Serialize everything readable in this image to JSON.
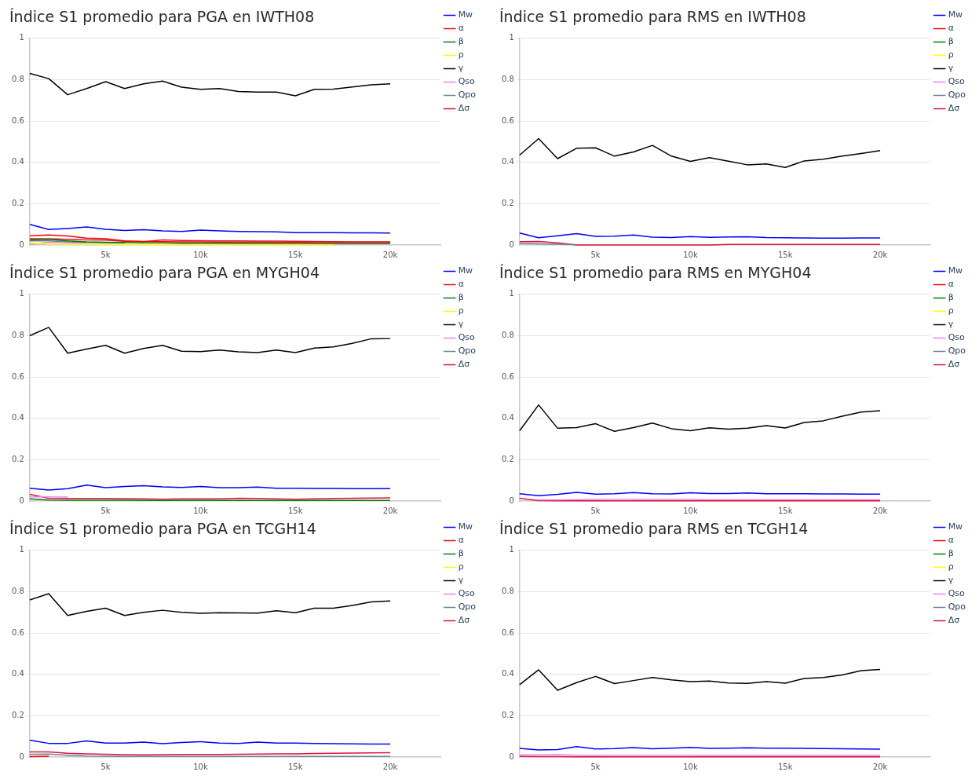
{
  "chart_data": [
    {
      "type": "line",
      "title": "Índice S1 promedio para PGA en IWTH08",
      "x": [
        1000,
        2000,
        3000,
        4000,
        5000,
        6000,
        7000,
        8000,
        9000,
        10000,
        11000,
        12000,
        13000,
        14000,
        15000,
        16000,
        17000,
        18000,
        19000,
        20000
      ],
      "xlim": [
        1000,
        22650
      ],
      "xticks": [
        {
          "value": 5000,
          "label": "5k"
        },
        {
          "value": 10000,
          "label": "10k"
        },
        {
          "value": 15000,
          "label": "15k"
        },
        {
          "value": 20000,
          "label": "20k"
        }
      ],
      "ylim": [
        0,
        1
      ],
      "yticks": [
        0,
        0.2,
        0.4,
        0.6,
        0.8,
        1
      ],
      "grid": "y",
      "legend": "top right",
      "series": [
        {
          "name": "Mw",
          "color": "#0000ff",
          "values": [
            0.1,
            0.075,
            0.08,
            0.087,
            0.076,
            0.07,
            0.074,
            0.068,
            0.066,
            0.072,
            0.068,
            0.066,
            0.065,
            0.064,
            0.06,
            0.06,
            0.06,
            0.059,
            0.059,
            0.058
          ]
        },
        {
          "name": "α",
          "color": "#ff0000",
          "values": [
            0.045,
            0.048,
            0.044,
            0.033,
            0.03,
            0.02,
            0.017,
            0.016,
            0.015,
            0.015,
            0.014,
            0.014,
            0.014,
            0.013,
            0.013,
            0.013,
            0.013,
            0.013,
            0.013,
            0.013
          ]
        },
        {
          "name": "β",
          "color": "#008000",
          "values": [
            0.025,
            0.028,
            0.02,
            0.015,
            0.013,
            0.012,
            0.01,
            0.01,
            0.009,
            0.009,
            0.009,
            0.008,
            0.008,
            0.008,
            0.008,
            0.007,
            0.007,
            0.007,
            0.007,
            0.007
          ]
        },
        {
          "name": "ρ",
          "color": "#ffff00",
          "values": [
            0.01,
            0.005,
            0.004,
            0.004,
            0.003,
            0.003,
            0.003,
            0.003,
            0.003,
            0.003,
            0.003,
            0.003,
            0.003,
            0.003,
            0.003,
            0.003,
            0.003,
            null,
            null,
            null
          ]
        },
        {
          "name": "γ",
          "color": "#000000",
          "values": [
            0.83,
            0.805,
            0.727,
            0.757,
            0.79,
            0.757,
            0.78,
            0.793,
            0.764,
            0.753,
            0.757,
            0.743,
            0.74,
            0.74,
            0.722,
            0.753,
            0.754,
            0.765,
            0.775,
            0.78
          ]
        },
        {
          "name": "Qso",
          "color": "#ee82ee",
          "values": [
            0.003,
            0.013,
            0.01,
            0.008,
            null,
            null,
            null,
            null,
            null,
            null,
            null,
            null,
            null,
            null,
            null,
            null,
            null,
            null,
            null,
            null
          ]
        },
        {
          "name": "Qpo",
          "color": "#708090",
          "values": [
            0.02,
            0.02,
            0.015,
            0.012,
            0.01,
            0.009,
            null,
            null,
            null,
            null,
            null,
            null,
            null,
            null,
            null,
            null,
            null,
            null,
            null,
            null
          ]
        },
        {
          "name": "Δσ",
          "color": "#dc143c",
          "values": [
            0.03,
            0.03,
            0.028,
            0.025,
            0.024,
            0.018,
            0.016,
            0.025,
            0.022,
            0.021,
            0.02,
            0.02,
            0.019,
            0.019,
            0.018,
            0.017,
            0.016,
            0.015,
            0.015,
            0.015
          ]
        }
      ]
    },
    {
      "type": "line",
      "title": "Índice S1 promedio para RMS en IWTH08",
      "x": [
        1000,
        2000,
        3000,
        4000,
        5000,
        6000,
        7000,
        8000,
        9000,
        10000,
        11000,
        12000,
        13000,
        14000,
        15000,
        16000,
        17000,
        18000,
        19000,
        20000
      ],
      "xlim": [
        1000,
        22650
      ],
      "xticks": [
        {
          "value": 5000,
          "label": "5k"
        },
        {
          "value": 10000,
          "label": "10k"
        },
        {
          "value": 15000,
          "label": "15k"
        },
        {
          "value": 20000,
          "label": "20k"
        }
      ],
      "ylim": [
        0,
        1
      ],
      "yticks": [
        0,
        0.2,
        0.4,
        0.6,
        0.8,
        1
      ],
      "grid": "y",
      "legend": "top right",
      "series": [
        {
          "name": "Mw",
          "color": "#0000ff",
          "values": [
            0.058,
            0.035,
            0.045,
            0.055,
            0.042,
            0.043,
            0.048,
            0.038,
            0.036,
            0.041,
            0.037,
            0.039,
            0.04,
            0.036,
            0.035,
            0.034,
            0.033,
            0.033,
            0.034,
            0.034
          ]
        },
        {
          "name": "α",
          "color": "#ff0000",
          "values": [
            null,
            null,
            null,
            null,
            null,
            null,
            null,
            null,
            null,
            null,
            null,
            null,
            null,
            null,
            null,
            null,
            null,
            null,
            null,
            null
          ]
        },
        {
          "name": "β",
          "color": "#008000",
          "values": [
            null,
            null,
            null,
            null,
            null,
            null,
            null,
            null,
            null,
            null,
            null,
            null,
            null,
            null,
            null,
            null,
            null,
            null,
            null,
            null
          ]
        },
        {
          "name": "ρ",
          "color": "#ffff00",
          "values": [
            null,
            null,
            null,
            null,
            null,
            null,
            null,
            null,
            null,
            null,
            null,
            null,
            null,
            null,
            null,
            null,
            null,
            null,
            null,
            null
          ]
        },
        {
          "name": "γ",
          "color": "#000000",
          "values": [
            0.435,
            0.515,
            0.418,
            0.468,
            0.47,
            0.43,
            0.45,
            0.482,
            0.43,
            0.405,
            0.423,
            0.406,
            0.388,
            0.392,
            0.375,
            0.407,
            0.415,
            0.43,
            0.443,
            0.457
          ]
        },
        {
          "name": "Qso",
          "color": "#ee82ee",
          "values": [
            null,
            null,
            null,
            null,
            null,
            null,
            null,
            null,
            null,
            null,
            null,
            null,
            null,
            null,
            null,
            null,
            null,
            null,
            null,
            null
          ]
        },
        {
          "name": "Qpo",
          "color": "#708090",
          "values": [
            0.008,
            0.006,
            0.004,
            0.002,
            null,
            null,
            null,
            null,
            null,
            null,
            null,
            null,
            null,
            null,
            null,
            null,
            null,
            null,
            null,
            null
          ]
        },
        {
          "name": "Δσ",
          "color": "#dc143c",
          "values": [
            0.016,
            0.017,
            0.01,
            0,
            0,
            0,
            0,
            0,
            0,
            0,
            0,
            0.003,
            0.003,
            0.003,
            0.003,
            0.003,
            0.003,
            0.003,
            0.003,
            0.003
          ]
        }
      ]
    },
    {
      "type": "line",
      "title": "Índice S1 promedio para PGA en MYGH04",
      "x": [
        1000,
        2000,
        3000,
        4000,
        5000,
        6000,
        7000,
        8000,
        9000,
        10000,
        11000,
        12000,
        13000,
        14000,
        15000,
        16000,
        17000,
        18000,
        19000,
        20000
      ],
      "xlim": [
        1000,
        22650
      ],
      "xticks": [
        {
          "value": 5000,
          "label": "5k"
        },
        {
          "value": 10000,
          "label": "10k"
        },
        {
          "value": 15000,
          "label": "15k"
        },
        {
          "value": 20000,
          "label": "20k"
        }
      ],
      "ylim": [
        0,
        1
      ],
      "yticks": [
        0,
        0.2,
        0.4,
        0.6,
        0.8,
        1
      ],
      "grid": "y",
      "legend": "top right",
      "series": [
        {
          "name": "Mw",
          "color": "#0000ff",
          "values": [
            0.062,
            0.053,
            0.06,
            0.077,
            0.065,
            0.07,
            0.074,
            0.068,
            0.066,
            0.07,
            0.065,
            0.065,
            0.067,
            0.062,
            0.062,
            0.061,
            0.061,
            0.06,
            0.06,
            0.06
          ]
        },
        {
          "name": "α",
          "color": "#ff0000",
          "values": [
            null,
            null,
            null,
            null,
            null,
            null,
            null,
            null,
            null,
            null,
            null,
            null,
            null,
            null,
            null,
            null,
            null,
            null,
            null,
            null
          ]
        },
        {
          "name": "β",
          "color": "#008000",
          "values": [
            0.01,
            0.005,
            0.004,
            0.004,
            0.004,
            0.004,
            0.003,
            0.003,
            0.003,
            0.003,
            0.003,
            0.003,
            0.003,
            0.003,
            0.003,
            0.003,
            0.003,
            0.003,
            0.003,
            0.003
          ]
        },
        {
          "name": "ρ",
          "color": "#ffff00",
          "values": [
            null,
            null,
            null,
            null,
            null,
            null,
            null,
            null,
            null,
            null,
            null,
            null,
            null,
            null,
            null,
            null,
            null,
            null,
            null,
            null
          ]
        },
        {
          "name": "γ",
          "color": "#000000",
          "values": [
            0.8,
            0.84,
            0.715,
            0.735,
            0.753,
            0.715,
            0.738,
            0.753,
            0.725,
            0.723,
            0.73,
            0.722,
            0.718,
            0.73,
            0.718,
            0.74,
            0.746,
            0.763,
            0.785,
            0.786
          ]
        },
        {
          "name": "Qso",
          "color": "#ee82ee",
          "values": [
            0.02,
            0.02,
            0.019,
            null,
            null,
            null,
            null,
            null,
            null,
            null,
            null,
            null,
            null,
            null,
            null,
            null,
            null,
            null,
            null,
            null
          ]
        },
        {
          "name": "Qpo",
          "color": "#708090",
          "values": [
            null,
            null,
            null,
            null,
            null,
            null,
            null,
            null,
            null,
            null,
            null,
            null,
            null,
            null,
            null,
            null,
            null,
            null,
            null,
            null
          ]
        },
        {
          "name": "Δσ",
          "color": "#dc143c",
          "values": [
            0.032,
            0.013,
            0.012,
            0.012,
            0.012,
            0.011,
            0.01,
            0.009,
            0.01,
            0.01,
            0.01,
            0.013,
            0.012,
            0.01,
            0.009,
            0.01,
            0.012,
            0.013,
            0.014,
            0.015
          ]
        }
      ]
    },
    {
      "type": "line",
      "title": "Índice S1 promedio para RMS en MYGH04",
      "x": [
        1000,
        2000,
        3000,
        4000,
        5000,
        6000,
        7000,
        8000,
        9000,
        10000,
        11000,
        12000,
        13000,
        14000,
        15000,
        16000,
        17000,
        18000,
        19000,
        20000
      ],
      "xlim": [
        1000,
        22650
      ],
      "xticks": [
        {
          "value": 5000,
          "label": "5k"
        },
        {
          "value": 10000,
          "label": "10k"
        },
        {
          "value": 15000,
          "label": "15k"
        },
        {
          "value": 20000,
          "label": "20k"
        }
      ],
      "ylim": [
        0,
        1
      ],
      "yticks": [
        0,
        0.2,
        0.4,
        0.6,
        0.8,
        1
      ],
      "grid": "y",
      "legend": "top right",
      "series": [
        {
          "name": "Mw",
          "color": "#0000ff",
          "values": [
            0.035,
            0.026,
            0.032,
            0.042,
            0.033,
            0.035,
            0.041,
            0.035,
            0.034,
            0.04,
            0.036,
            0.036,
            0.039,
            0.035,
            0.035,
            0.035,
            0.034,
            0.034,
            0.033,
            0.033
          ]
        },
        {
          "name": "α",
          "color": "#ff0000",
          "values": [
            null,
            null,
            null,
            null,
            null,
            null,
            null,
            null,
            null,
            null,
            null,
            null,
            null,
            null,
            null,
            null,
            null,
            null,
            null,
            null
          ]
        },
        {
          "name": "β",
          "color": "#008000",
          "values": [
            null,
            null,
            null,
            null,
            null,
            null,
            null,
            null,
            null,
            null,
            null,
            null,
            null,
            null,
            null,
            null,
            null,
            null,
            null,
            null
          ]
        },
        {
          "name": "ρ",
          "color": "#ffff00",
          "values": [
            null,
            null,
            null,
            null,
            null,
            null,
            null,
            null,
            null,
            null,
            null,
            null,
            null,
            null,
            null,
            null,
            null,
            null,
            null,
            null
          ]
        },
        {
          "name": "γ",
          "color": "#000000",
          "values": [
            0.34,
            0.465,
            0.352,
            0.355,
            0.374,
            0.337,
            0.355,
            0.377,
            0.35,
            0.34,
            0.354,
            0.348,
            0.352,
            0.365,
            0.353,
            0.38,
            0.388,
            0.41,
            0.43,
            0.437
          ]
        },
        {
          "name": "Qso",
          "color": "#ee82ee",
          "values": [
            null,
            0.006,
            0.006,
            0.007,
            0.008,
            0.009,
            0.009,
            0.008,
            0.008,
            0.008,
            0.007,
            0.007,
            0.007,
            0.007,
            0.007,
            0.007,
            0.007,
            0.007,
            0.007,
            0.007
          ]
        },
        {
          "name": "Qpo",
          "color": "#708090",
          "values": [
            null,
            null,
            null,
            null,
            null,
            null,
            null,
            null,
            null,
            null,
            null,
            null,
            null,
            null,
            null,
            null,
            null,
            null,
            null,
            null
          ]
        },
        {
          "name": "Δσ",
          "color": "#dc143c",
          "values": [
            0.013,
            0.002,
            0.001,
            0.001,
            0.001,
            0.001,
            0.001,
            0.001,
            0.001,
            0.001,
            0.001,
            0.001,
            0.001,
            0.001,
            0.001,
            0.001,
            0.001,
            0.001,
            0.001,
            0.001
          ]
        }
      ]
    },
    {
      "type": "line",
      "title": "Índice S1 promedio para PGA en TCGH14",
      "x": [
        1000,
        2000,
        3000,
        4000,
        5000,
        6000,
        7000,
        8000,
        9000,
        10000,
        11000,
        12000,
        13000,
        14000,
        15000,
        16000,
        17000,
        18000,
        19000,
        20000
      ],
      "xlim": [
        1000,
        22650
      ],
      "xticks": [
        {
          "value": 5000,
          "label": "5k"
        },
        {
          "value": 10000,
          "label": "10k"
        },
        {
          "value": 15000,
          "label": "15k"
        },
        {
          "value": 20000,
          "label": "20k"
        }
      ],
      "ylim": [
        0,
        1
      ],
      "yticks": [
        0,
        0.2,
        0.4,
        0.6,
        0.8,
        1
      ],
      "grid": "y",
      "legend": "top right",
      "series": [
        {
          "name": "Mw",
          "color": "#0000ff",
          "values": [
            0.082,
            0.066,
            0.066,
            0.078,
            0.067,
            0.067,
            0.072,
            0.065,
            0.07,
            0.074,
            0.067,
            0.066,
            0.072,
            0.067,
            0.067,
            0.066,
            0.065,
            0.064,
            0.063,
            0.063
          ]
        },
        {
          "name": "α",
          "color": "#ff0000",
          "values": [
            0.002,
            0.004,
            null,
            null,
            null,
            null,
            null,
            null,
            null,
            null,
            null,
            null,
            null,
            null,
            null,
            null,
            null,
            null,
            null,
            null
          ]
        },
        {
          "name": "β",
          "color": "#008000",
          "values": [
            null,
            null,
            null,
            null,
            null,
            null,
            null,
            null,
            null,
            null,
            null,
            null,
            null,
            null,
            null,
            null,
            null,
            null,
            null,
            null
          ]
        },
        {
          "name": "ρ",
          "color": "#ffff00",
          "values": [
            null,
            null,
            null,
            null,
            null,
            null,
            null,
            null,
            null,
            null,
            null,
            null,
            null,
            null,
            null,
            null,
            null,
            null,
            null,
            null
          ]
        },
        {
          "name": "γ",
          "color": "#000000",
          "values": [
            0.76,
            0.79,
            0.685,
            0.705,
            0.72,
            0.685,
            0.7,
            0.71,
            0.7,
            0.695,
            0.698,
            0.697,
            0.696,
            0.708,
            0.698,
            0.72,
            0.72,
            0.733,
            0.75,
            0.755
          ]
        },
        {
          "name": "Qso",
          "color": "#ee82ee",
          "values": [
            null,
            null,
            null,
            null,
            null,
            null,
            null,
            null,
            null,
            null,
            null,
            null,
            null,
            null,
            null,
            null,
            null,
            null,
            null,
            null
          ]
        },
        {
          "name": "Qpo",
          "color": "#708090",
          "values": [
            0.013,
            0.014,
            0.009,
            0.005,
            0.004,
            0.003,
            0.003,
            0.003,
            0.003,
            0.003,
            0.003,
            0.003,
            0.003,
            0.003,
            0.003,
            0.003,
            0.003,
            0.003,
            0.003,
            0.003
          ]
        },
        {
          "name": "Δσ",
          "color": "#dc143c",
          "values": [
            0.025,
            0.025,
            0.018,
            0.015,
            0.013,
            0.011,
            0.01,
            0.011,
            0.012,
            0.012,
            0.012,
            0.013,
            0.014,
            0.015,
            0.015,
            0.017,
            0.018,
            0.019,
            0.02,
            0.021
          ]
        }
      ]
    },
    {
      "type": "line",
      "title": "Índice S1 promedio para RMS en TCGH14",
      "x": [
        1000,
        2000,
        3000,
        4000,
        5000,
        6000,
        7000,
        8000,
        9000,
        10000,
        11000,
        12000,
        13000,
        14000,
        15000,
        16000,
        17000,
        18000,
        19000,
        20000
      ],
      "xlim": [
        1000,
        22650
      ],
      "xticks": [
        {
          "value": 5000,
          "label": "5k"
        },
        {
          "value": 10000,
          "label": "10k"
        },
        {
          "value": 15000,
          "label": "15k"
        },
        {
          "value": 20000,
          "label": "20k"
        }
      ],
      "ylim": [
        0,
        1
      ],
      "yticks": [
        0,
        0.2,
        0.4,
        0.6,
        0.8,
        1
      ],
      "grid": "y",
      "legend": "top right",
      "series": [
        {
          "name": "Mw",
          "color": "#0000ff",
          "values": [
            0.042,
            0.034,
            0.036,
            0.05,
            0.039,
            0.041,
            0.046,
            0.04,
            0.043,
            0.047,
            0.042,
            0.043,
            0.045,
            0.043,
            0.043,
            0.042,
            0.041,
            0.04,
            0.039,
            0.038
          ]
        },
        {
          "name": "α",
          "color": "#ff0000",
          "values": [
            null,
            null,
            null,
            null,
            null,
            null,
            null,
            null,
            null,
            null,
            null,
            null,
            null,
            null,
            null,
            null,
            null,
            null,
            null,
            null
          ]
        },
        {
          "name": "β",
          "color": "#008000",
          "values": [
            null,
            null,
            null,
            null,
            null,
            null,
            null,
            null,
            null,
            null,
            null,
            null,
            null,
            null,
            null,
            null,
            null,
            null,
            null,
            null
          ]
        },
        {
          "name": "ρ",
          "color": "#ffff00",
          "values": [
            null,
            null,
            null,
            null,
            null,
            null,
            null,
            null,
            null,
            null,
            null,
            null,
            null,
            null,
            null,
            null,
            null,
            null,
            null,
            null
          ]
        },
        {
          "name": "γ",
          "color": "#000000",
          "values": [
            0.35,
            0.422,
            0.323,
            0.36,
            0.39,
            0.355,
            0.37,
            0.385,
            0.373,
            0.365,
            0.368,
            0.358,
            0.356,
            0.365,
            0.357,
            0.38,
            0.385,
            0.397,
            0.418,
            0.424
          ]
        },
        {
          "name": "Qso",
          "color": "#ee82ee",
          "values": [
            0.01,
            0.01,
            0.012,
            0.009,
            0.008,
            0.009,
            0.009,
            0.009,
            0.009,
            0.009,
            0.008,
            0.008,
            0.008,
            0.008,
            0.008,
            0.008,
            0.008,
            0.008,
            0.008,
            0.008
          ]
        },
        {
          "name": "Qpo",
          "color": "#708090",
          "values": [
            null,
            null,
            null,
            null,
            null,
            null,
            null,
            null,
            null,
            null,
            null,
            null,
            null,
            null,
            null,
            null,
            null,
            null,
            null,
            null
          ]
        },
        {
          "name": "Δσ",
          "color": "#dc143c",
          "values": [
            0.003,
            0.002,
            0.002,
            0.001,
            0.001,
            0.001,
            0.001,
            0.001,
            0.001,
            0.001,
            0.001,
            0.001,
            0.001,
            0.001,
            0.001,
            0.001,
            0.001,
            0.001,
            0.001,
            0.001
          ]
        }
      ]
    }
  ]
}
